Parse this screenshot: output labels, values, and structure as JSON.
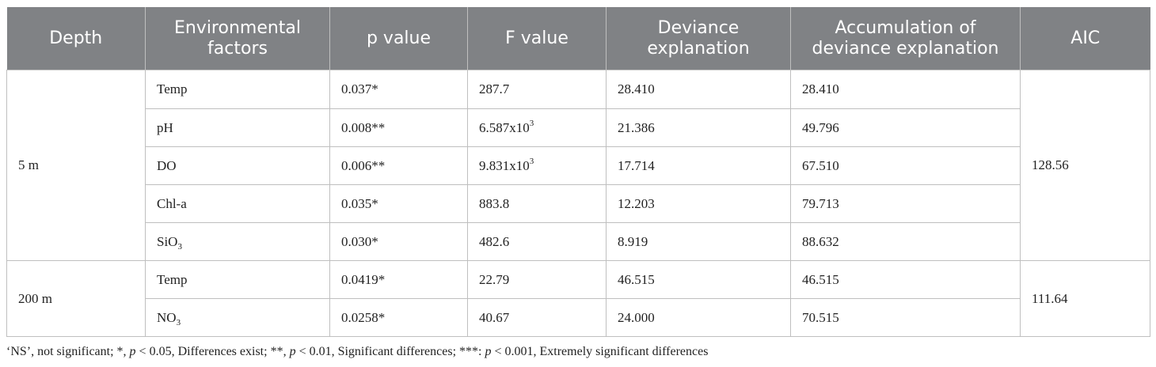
{
  "headers": {
    "depth": "Depth",
    "env_line1": "Environmental",
    "env_line2": "factors",
    "p_value": "p value",
    "f_value": "F value",
    "dev_line1": "Deviance",
    "dev_line2": "explanation",
    "acc_line1": "Accumulation of",
    "acc_line2": "deviance explanation",
    "aic": "AIC"
  },
  "groups": [
    {
      "depth": "5 m",
      "aic": "128.56",
      "rows": [
        {
          "factor": "Temp",
          "factor_sub": "",
          "p": "0.037*",
          "f_base": "287.7",
          "f_sup": "",
          "dev": "28.410",
          "acc": "28.410"
        },
        {
          "factor": "pH",
          "factor_sub": "",
          "p": "0.008**",
          "f_base": "6.587x10",
          "f_sup": "3",
          "dev": "21.386",
          "acc": "49.796"
        },
        {
          "factor": "DO",
          "factor_sub": "",
          "p": "0.006**",
          "f_base": "9.831x10",
          "f_sup": "3",
          "dev": "17.714",
          "acc": "67.510"
        },
        {
          "factor": "Chl-a",
          "factor_sub": "",
          "p": "0.035*",
          "f_base": "883.8",
          "f_sup": "",
          "dev": "12.203",
          "acc": "79.713"
        },
        {
          "factor": "SiO",
          "factor_sub": "3",
          "p": "0.030*",
          "f_base": "482.6",
          "f_sup": "",
          "dev": "8.919",
          "acc": "88.632"
        }
      ]
    },
    {
      "depth": "200 m",
      "aic": "111.64",
      "rows": [
        {
          "factor": "Temp",
          "factor_sub": "",
          "p": "0.0419*",
          "f_base": "22.79",
          "f_sup": "",
          "dev": "46.515",
          "acc": "46.515"
        },
        {
          "factor": "NO",
          "factor_sub": "3",
          "p": "0.0258*",
          "f_base": "40.67",
          "f_sup": "",
          "dev": "24.000",
          "acc": "70.515"
        }
      ]
    }
  ],
  "footnote": {
    "part1": "‘NS’, not significant; *, ",
    "p1": "p",
    "part2": " < 0.05, Differences exist; **, ",
    "p2": "p",
    "part3": " < 0.01, Significant differences; ***: ",
    "p3": "p",
    "part4": " < 0.001, Extremely significant differences"
  }
}
